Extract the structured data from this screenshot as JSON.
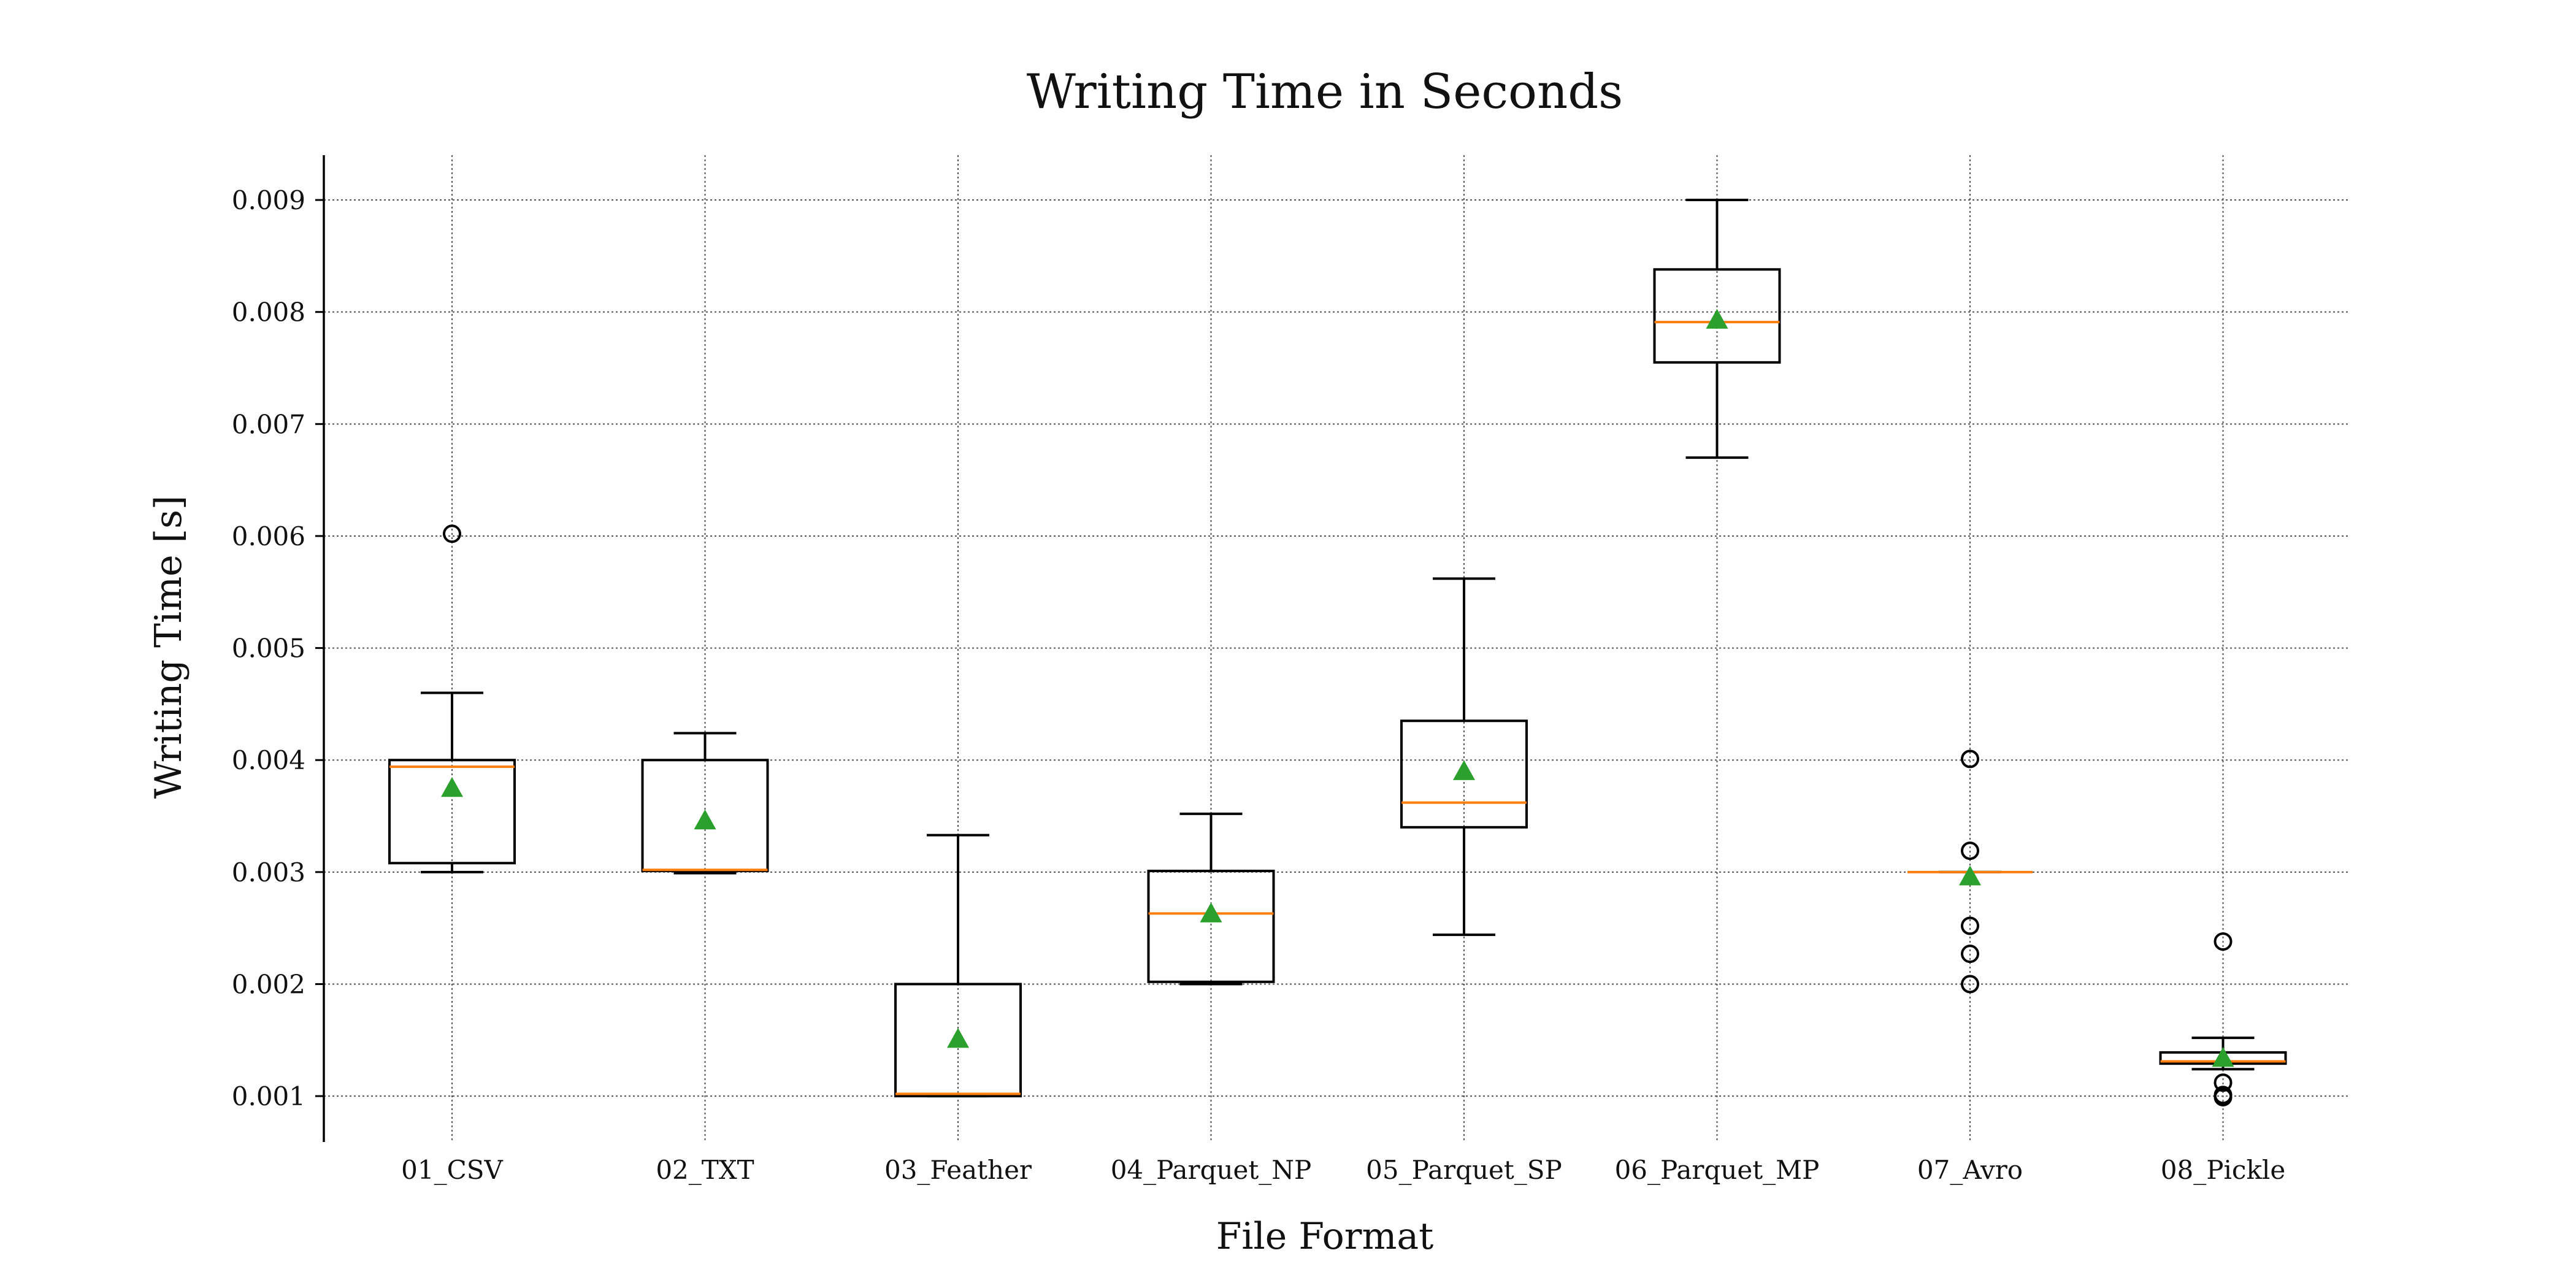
{
  "chart_data": {
    "type": "boxplot",
    "title": "Writing Time in Seconds",
    "xlabel": "File Format",
    "ylabel": "Writing Time [s]",
    "ylim": [
      0.00059,
      0.0094
    ],
    "yticks": [
      0.001,
      0.002,
      0.003,
      0.004,
      0.005,
      0.006,
      0.007,
      0.008,
      0.009
    ],
    "ytick_labels": [
      "0.001",
      "0.002",
      "0.003",
      "0.004",
      "0.005",
      "0.006",
      "0.007",
      "0.008",
      "0.009"
    ],
    "grid": true,
    "colors": {
      "median": "#ff7f0e",
      "mean": "#2ca02c",
      "box": "#000000"
    },
    "categories": [
      "01_CSV",
      "02_TXT",
      "03_Feather",
      "04_Parquet_NP",
      "05_Parquet_SP",
      "06_Parquet_MP",
      "07_Avro",
      "08_Pickle"
    ],
    "boxes": [
      {
        "category": "01_CSV",
        "whisker_low": 0.003,
        "q1": 0.00308,
        "median": 0.00394,
        "q3": 0.004,
        "whisker_high": 0.0046,
        "mean": 0.00375,
        "fliers": [
          0.00602
        ]
      },
      {
        "category": "02_TXT",
        "whisker_low": 0.00299,
        "q1": 0.00301,
        "median": 0.00302,
        "q3": 0.004,
        "whisker_high": 0.00424,
        "mean": 0.00346,
        "fliers": []
      },
      {
        "category": "03_Feather",
        "whisker_low": 0.001,
        "q1": 0.001,
        "median": 0.00102,
        "q3": 0.002,
        "whisker_high": 0.00333,
        "mean": 0.00151,
        "fliers": []
      },
      {
        "category": "04_Parquet_NP",
        "whisker_low": 0.002,
        "q1": 0.00202,
        "median": 0.00263,
        "q3": 0.00301,
        "whisker_high": 0.00352,
        "mean": 0.00263,
        "fliers": []
      },
      {
        "category": "05_Parquet_SP",
        "whisker_low": 0.00244,
        "q1": 0.0034,
        "median": 0.00362,
        "q3": 0.00435,
        "whisker_high": 0.00562,
        "mean": 0.0039,
        "fliers": []
      },
      {
        "category": "06_Parquet_MP",
        "whisker_low": 0.0067,
        "q1": 0.00755,
        "median": 0.00791,
        "q3": 0.00838,
        "whisker_high": 0.009,
        "mean": 0.00793,
        "fliers": []
      },
      {
        "category": "07_Avro",
        "whisker_low": 0.003,
        "q1": 0.003,
        "median": 0.003,
        "q3": 0.003,
        "whisker_high": 0.003,
        "mean": 0.00296,
        "fliers": [
          0.00401,
          0.00319,
          0.00252,
          0.00227,
          0.002
        ]
      },
      {
        "category": "08_Pickle",
        "whisker_low": 0.00124,
        "q1": 0.00129,
        "median": 0.00131,
        "q3": 0.00139,
        "whisker_high": 0.00152,
        "mean": 0.00134,
        "fliers": [
          0.00238,
          0.00112,
          0.00101,
          0.00099
        ]
      }
    ]
  }
}
